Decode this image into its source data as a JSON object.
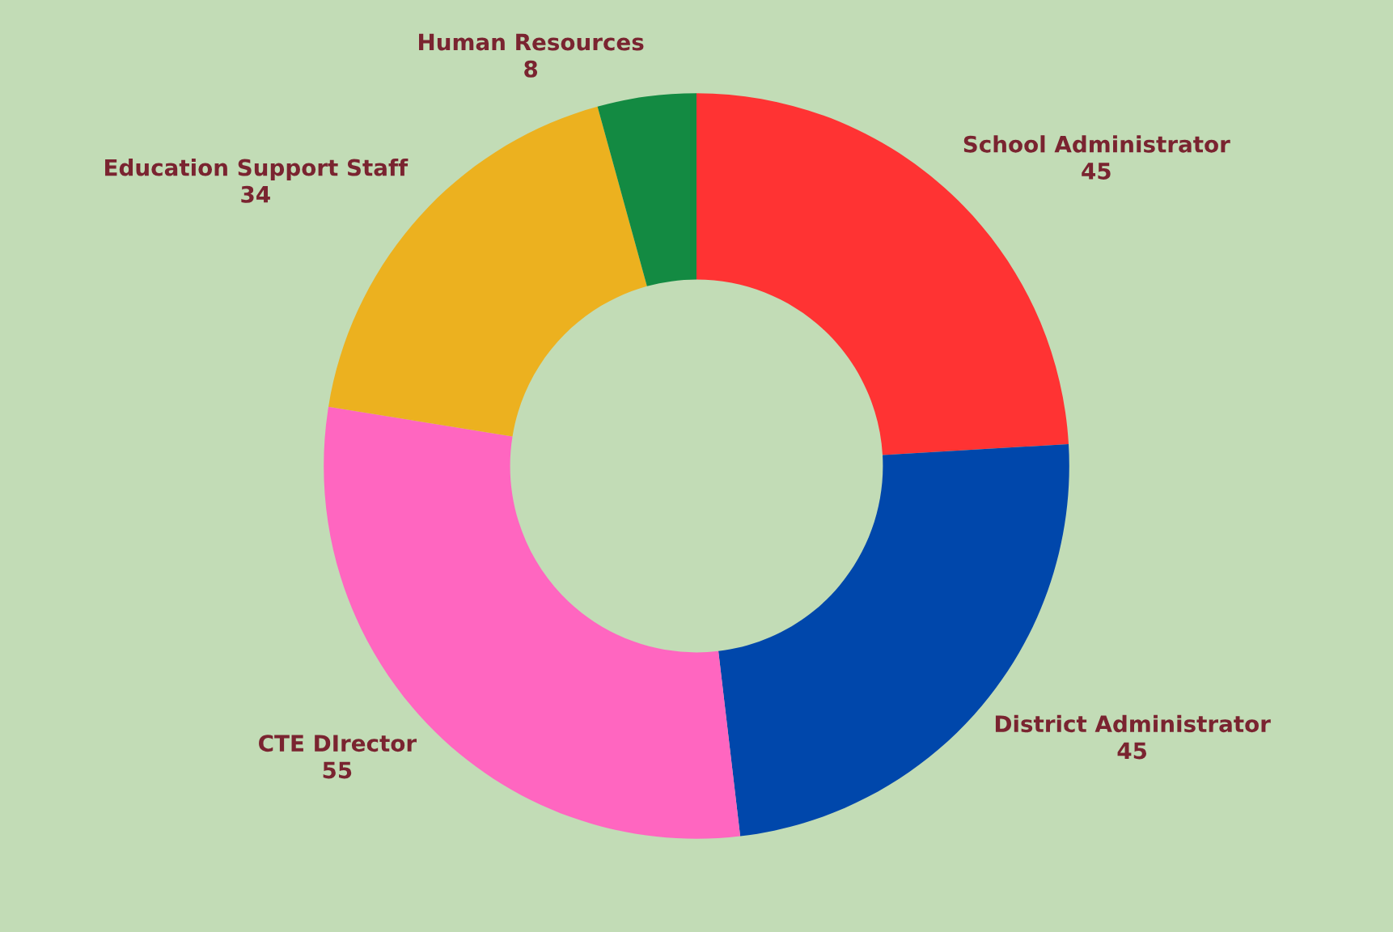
{
  "chart_data": {
    "type": "donut",
    "categories": [
      "School Administrator",
      "District Administrator",
      "CTE DIrector",
      "Education Support Staff",
      "Human Resources"
    ],
    "values": [
      45,
      45,
      55,
      34,
      8
    ],
    "colors": [
      "#ff3333",
      "#0047ab",
      "#ff66c0",
      "#ecb11f",
      "#138a42"
    ],
    "data_labels": true
  }
}
